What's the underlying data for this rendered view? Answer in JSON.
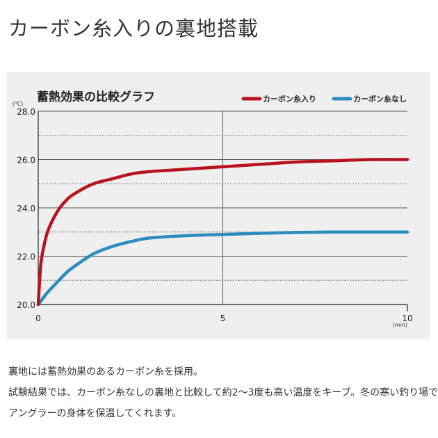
{
  "page": {
    "heading": "カーボン糸入りの裏地搭載"
  },
  "chart_data": {
    "type": "line",
    "title": "蓄熱効果の比較グラフ",
    "xlabel": "",
    "ylabel": "",
    "x_unit": "(min)",
    "y_unit": "(℃)",
    "xlim": [
      0,
      10
    ],
    "ylim": [
      20.0,
      28.0
    ],
    "x_ticks": [
      "0",
      "5",
      "10"
    ],
    "y_ticks": [
      "20.0",
      "22.0",
      "24.0",
      "26.0",
      "28.0"
    ],
    "grid": true,
    "legend_position": "top-right",
    "x": [
      0,
      0.05,
      0.1,
      0.25,
      0.5,
      0.75,
      1,
      1.5,
      2,
      2.5,
      3,
      4,
      5,
      6,
      7,
      8,
      9,
      10
    ],
    "series": [
      {
        "name": "カーボン糸入り",
        "color": "#b8141e",
        "values": [
          20.0,
          21.3,
          22.0,
          23.0,
          23.8,
          24.3,
          24.6,
          25.0,
          25.2,
          25.4,
          25.5,
          25.6,
          25.7,
          25.8,
          25.9,
          25.95,
          26.0,
          26.0
        ]
      },
      {
        "name": "カーボン糸なし",
        "color": "#2c8cbe",
        "values": [
          20.0,
          20.1,
          20.2,
          20.5,
          20.9,
          21.3,
          21.6,
          22.1,
          22.4,
          22.6,
          22.75,
          22.85,
          22.9,
          22.95,
          22.98,
          23.0,
          23.0,
          23.0
        ]
      }
    ]
  },
  "description": {
    "line1": "裏地には蓄熱効果のあるカーボン糸を採用。",
    "line2": "試験結果では、カーボン糸なしの裏地と比較して約2〜3度も高い温度をキープ。冬の寒い釣り場でも",
    "line3": "アングラーの身体を保温してくれます。"
  }
}
